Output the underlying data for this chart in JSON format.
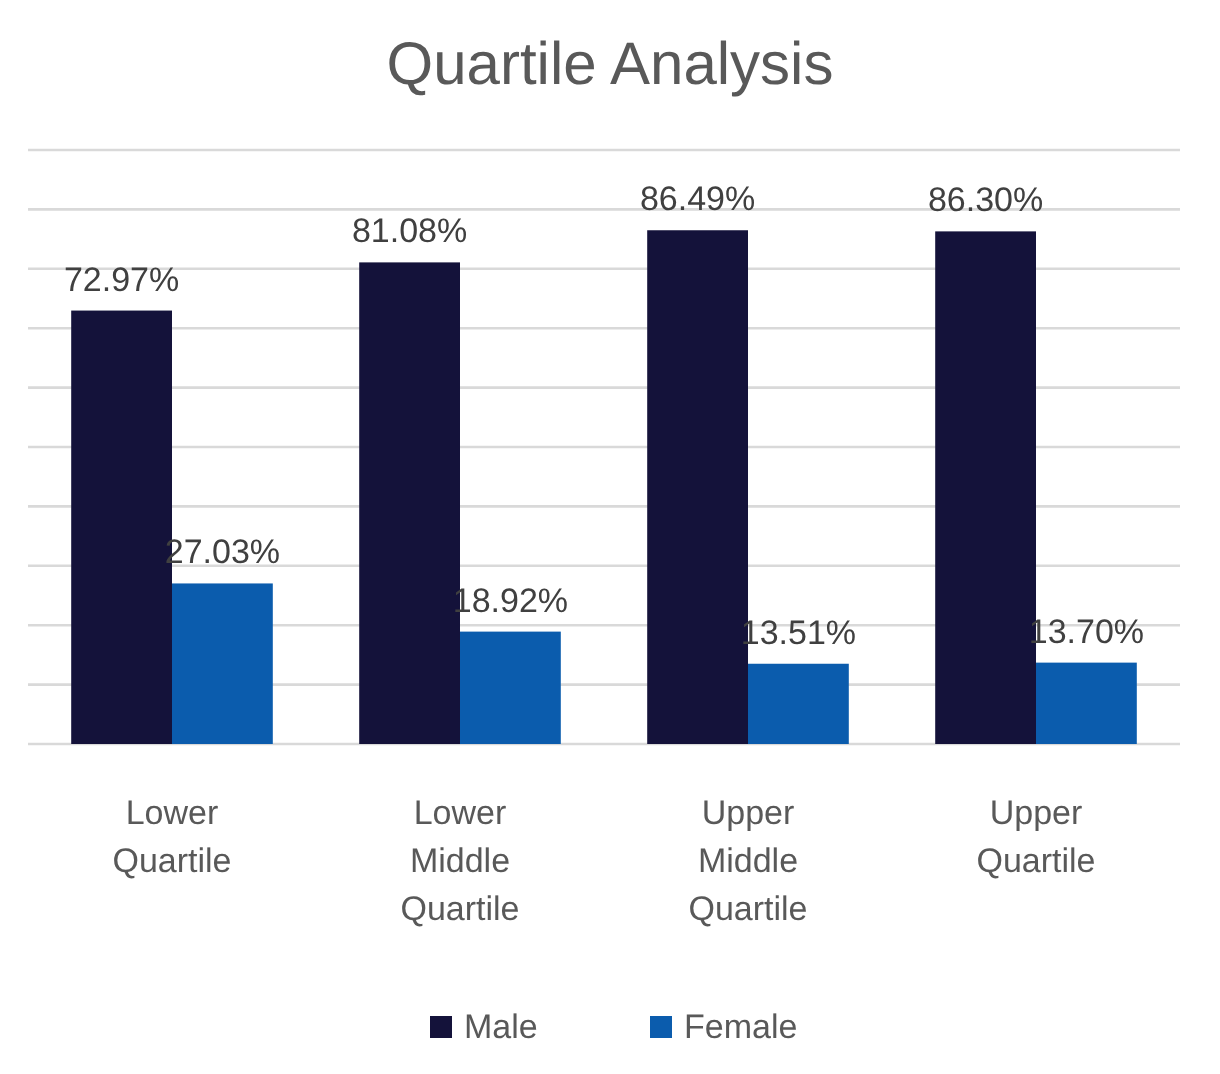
{
  "chart_data": {
    "type": "bar",
    "title": "Quartile Analysis",
    "categories": [
      "Lower Quartile",
      "Lower Middle Quartile",
      "Upper Middle Quartile",
      "Upper Quartile"
    ],
    "series": [
      {
        "name": "Male",
        "color": "#14123a",
        "values": [
          72.97,
          81.08,
          86.49,
          86.3
        ],
        "value_labels": [
          "72.97%",
          "81.08%",
          "86.49%",
          "86.30%"
        ]
      },
      {
        "name": "Female",
        "color": "#0b5cad",
        "values": [
          27.03,
          18.92,
          13.51,
          13.7
        ],
        "value_labels": [
          "27.03%",
          "18.92%",
          "13.51%",
          "13.70%"
        ]
      }
    ],
    "ylim": [
      0,
      100
    ],
    "yticks": [
      {
        "value": 0,
        "label": null
      },
      {
        "value": 10,
        "label": null
      },
      {
        "value": 20,
        "label": null
      },
      {
        "value": 30,
        "label": null
      },
      {
        "value": 40,
        "label": null
      },
      {
        "value": 50,
        "label": null
      },
      {
        "value": 60,
        "label": null
      },
      {
        "value": 70,
        "label": null
      },
      {
        "value": 80,
        "label": null
      },
      {
        "value": 90,
        "label": null
      },
      {
        "value": 100,
        "label": null
      }
    ],
    "tick_labels": "x",
    "grid": "y",
    "legend": "bottom"
  }
}
